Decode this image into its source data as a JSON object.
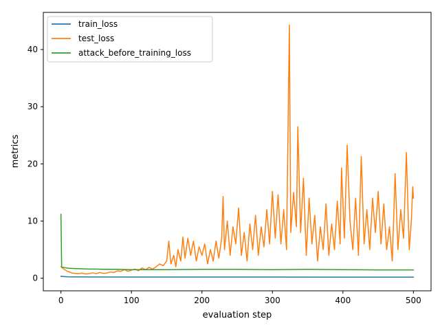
{
  "chart_data": {
    "type": "line",
    "title": "",
    "xlabel": "evaluation step",
    "ylabel": "metrics",
    "xlim": [
      -25,
      525
    ],
    "ylim": [
      -2.2,
      46.5
    ],
    "xticks": [
      0,
      100,
      200,
      300,
      400,
      500
    ],
    "yticks": [
      0,
      10,
      20,
      30,
      40
    ],
    "grid": false,
    "legend_position": "top-left",
    "series": [
      {
        "name": "train_loss",
        "color": "#1f77b4",
        "points": [
          [
            0,
            0.35
          ],
          [
            5,
            0.28
          ],
          [
            10,
            0.25
          ],
          [
            20,
            0.23
          ],
          [
            50,
            0.22
          ],
          [
            100,
            0.21
          ],
          [
            200,
            0.2
          ],
          [
            300,
            0.2
          ],
          [
            400,
            0.19
          ],
          [
            500,
            0.19
          ]
        ]
      },
      {
        "name": "test_loss",
        "color": "#ff7f0e",
        "points": [
          [
            0,
            2.0
          ],
          [
            4,
            1.6
          ],
          [
            8,
            1.3
          ],
          [
            12,
            1.1
          ],
          [
            16,
            0.9
          ],
          [
            20,
            0.85
          ],
          [
            25,
            0.8
          ],
          [
            30,
            0.9
          ],
          [
            35,
            0.75
          ],
          [
            40,
            0.8
          ],
          [
            45,
            0.95
          ],
          [
            50,
            0.8
          ],
          [
            55,
            1.0
          ],
          [
            60,
            0.85
          ],
          [
            65,
            0.9
          ],
          [
            70,
            1.1
          ],
          [
            75,
            1.0
          ],
          [
            80,
            1.3
          ],
          [
            85,
            1.2
          ],
          [
            90,
            1.5
          ],
          [
            95,
            1.2
          ],
          [
            100,
            1.4
          ],
          [
            105,
            1.6
          ],
          [
            110,
            1.3
          ],
          [
            115,
            1.8
          ],
          [
            120,
            1.5
          ],
          [
            125,
            1.9
          ],
          [
            130,
            1.6
          ],
          [
            135,
            2.0
          ],
          [
            140,
            2.5
          ],
          [
            145,
            2.2
          ],
          [
            150,
            3.0
          ],
          [
            153,
            6.5
          ],
          [
            156,
            2.5
          ],
          [
            160,
            4.0
          ],
          [
            163,
            2.0
          ],
          [
            166,
            5.0
          ],
          [
            170,
            3.0
          ],
          [
            173,
            7.2
          ],
          [
            176,
            3.5
          ],
          [
            180,
            7.0
          ],
          [
            184,
            4.0
          ],
          [
            188,
            6.5
          ],
          [
            192,
            3.0
          ],
          [
            196,
            5.5
          ],
          [
            200,
            4.0
          ],
          [
            204,
            6.0
          ],
          [
            208,
            2.5
          ],
          [
            212,
            5.0
          ],
          [
            216,
            3.0
          ],
          [
            220,
            6.5
          ],
          [
            224,
            3.5
          ],
          [
            228,
            7.0
          ],
          [
            230,
            14.3
          ],
          [
            232,
            5.0
          ],
          [
            236,
            10.0
          ],
          [
            240,
            4.0
          ],
          [
            244,
            9.0
          ],
          [
            248,
            6.0
          ],
          [
            252,
            12.3
          ],
          [
            256,
            4.0
          ],
          [
            260,
            8.0
          ],
          [
            264,
            3.0
          ],
          [
            268,
            9.5
          ],
          [
            272,
            5.0
          ],
          [
            276,
            11.0
          ],
          [
            280,
            4.0
          ],
          [
            284,
            9.0
          ],
          [
            288,
            5.5
          ],
          [
            292,
            12.0
          ],
          [
            296,
            6.0
          ],
          [
            300,
            15.2
          ],
          [
            304,
            7.0
          ],
          [
            308,
            14.6
          ],
          [
            312,
            6.0
          ],
          [
            316,
            12.0
          ],
          [
            320,
            5.0
          ],
          [
            324,
            44.3
          ],
          [
            326,
            8.0
          ],
          [
            330,
            15.0
          ],
          [
            334,
            9.0
          ],
          [
            336,
            26.5
          ],
          [
            340,
            8.0
          ],
          [
            344,
            17.5
          ],
          [
            348,
            4.0
          ],
          [
            352,
            14.0
          ],
          [
            356,
            6.0
          ],
          [
            360,
            11.0
          ],
          [
            364,
            3.0
          ],
          [
            368,
            9.0
          ],
          [
            372,
            5.0
          ],
          [
            376,
            13.0
          ],
          [
            380,
            4.0
          ],
          [
            384,
            9.5
          ],
          [
            388,
            5.0
          ],
          [
            392,
            13.5
          ],
          [
            396,
            6.0
          ],
          [
            398,
            19.3
          ],
          [
            402,
            7.0
          ],
          [
            406,
            23.3
          ],
          [
            410,
            10.0
          ],
          [
            414,
            5.0
          ],
          [
            418,
            14.0
          ],
          [
            422,
            4.0
          ],
          [
            426,
            21.3
          ],
          [
            430,
            6.0
          ],
          [
            434,
            12.0
          ],
          [
            438,
            5.0
          ],
          [
            442,
            14.0
          ],
          [
            446,
            8.0
          ],
          [
            450,
            15.2
          ],
          [
            454,
            6.0
          ],
          [
            458,
            13.0
          ],
          [
            462,
            5.0
          ],
          [
            466,
            9.0
          ],
          [
            470,
            3.0
          ],
          [
            474,
            18.3
          ],
          [
            478,
            5.0
          ],
          [
            482,
            12.0
          ],
          [
            486,
            7.0
          ],
          [
            490,
            22.0
          ],
          [
            494,
            5.0
          ],
          [
            497,
            10.0
          ],
          [
            499,
            16.0
          ],
          [
            500,
            14.0
          ]
        ]
      },
      {
        "name": "attack_before_training_loss",
        "color": "#2ca02c",
        "points": [
          [
            0,
            11.2
          ],
          [
            1,
            2.0
          ],
          [
            5,
            1.85
          ],
          [
            10,
            1.75
          ],
          [
            20,
            1.7
          ],
          [
            30,
            1.65
          ],
          [
            40,
            1.6
          ],
          [
            50,
            1.6
          ],
          [
            60,
            1.55
          ],
          [
            80,
            1.55
          ],
          [
            100,
            1.5
          ],
          [
            120,
            1.5
          ],
          [
            150,
            1.5
          ],
          [
            200,
            1.55
          ],
          [
            250,
            1.55
          ],
          [
            300,
            1.5
          ],
          [
            350,
            1.55
          ],
          [
            400,
            1.5
          ],
          [
            450,
            1.45
          ],
          [
            500,
            1.45
          ]
        ]
      }
    ]
  }
}
